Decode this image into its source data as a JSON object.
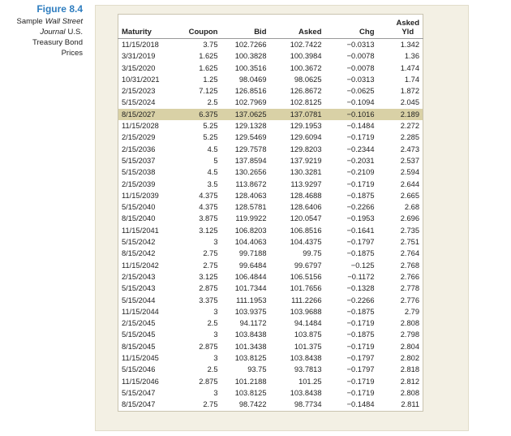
{
  "figure": {
    "label": "Figure 8.4",
    "caption_lines": [
      [
        {
          "text": "Sample"
        },
        {
          "text": "Wall Street",
          "italic": true
        }
      ],
      [
        {
          "text": "Journal",
          "italic": true
        },
        {
          "text": "U.S."
        }
      ],
      [
        {
          "text": "Treasury Bond"
        }
      ],
      [
        {
          "text": "Prices"
        }
      ]
    ]
  },
  "table": {
    "headers": [
      "Maturity",
      "Coupon",
      "Bid",
      "Asked",
      "Chg",
      "Asked Yld"
    ],
    "highlight_row": 6,
    "rows": [
      [
        "11/15/2018",
        "3.75",
        "102.7266",
        "102.7422",
        "−0.0313",
        "1.342"
      ],
      [
        "3/31/2019",
        "1.625",
        "100.3828",
        "100.3984",
        "−0.0078",
        "1.36"
      ],
      [
        "3/15/2020",
        "1.625",
        "100.3516",
        "100.3672",
        "−0.0078",
        "1.474"
      ],
      [
        "10/31/2021",
        "1.25",
        "98.0469",
        "98.0625",
        "−0.0313",
        "1.74"
      ],
      [
        "2/15/2023",
        "7.125",
        "126.8516",
        "126.8672",
        "−0.0625",
        "1.872"
      ],
      [
        "5/15/2024",
        "2.5",
        "102.7969",
        "102.8125",
        "−0.1094",
        "2.045"
      ],
      [
        "8/15/2027",
        "6.375",
        "137.0625",
        "137.0781",
        "−0.1016",
        "2.189"
      ],
      [
        "11/15/2028",
        "5.25",
        "129.1328",
        "129.1953",
        "−0.1484",
        "2.272"
      ],
      [
        "2/15/2029",
        "5.25",
        "129.5469",
        "129.6094",
        "−0.1719",
        "2.285"
      ],
      [
        "2/15/2036",
        "4.5",
        "129.7578",
        "129.8203",
        "−0.2344",
        "2.473"
      ],
      [
        "5/15/2037",
        "5",
        "137.8594",
        "137.9219",
        "−0.2031",
        "2.537"
      ],
      [
        "5/15/2038",
        "4.5",
        "130.2656",
        "130.3281",
        "−0.2109",
        "2.594"
      ],
      [
        "2/15/2039",
        "3.5",
        "113.8672",
        "113.9297",
        "−0.1719",
        "2.644"
      ],
      [
        "11/15/2039",
        "4.375",
        "128.4063",
        "128.4688",
        "−0.1875",
        "2.665"
      ],
      [
        "5/15/2040",
        "4.375",
        "128.5781",
        "128.6406",
        "−0.2266",
        "2.68"
      ],
      [
        "8/15/2040",
        "3.875",
        "119.9922",
        "120.0547",
        "−0.1953",
        "2.696"
      ],
      [
        "11/15/2041",
        "3.125",
        "106.8203",
        "106.8516",
        "−0.1641",
        "2.735"
      ],
      [
        "5/15/2042",
        "3",
        "104.4063",
        "104.4375",
        "−0.1797",
        "2.751"
      ],
      [
        "8/15/2042",
        "2.75",
        "99.7188",
        "99.75",
        "−0.1875",
        "2.764"
      ],
      [
        "11/15/2042",
        "2.75",
        "99.6484",
        "99.6797",
        "−0.125",
        "2.768"
      ],
      [
        "2/15/2043",
        "3.125",
        "106.4844",
        "106.5156",
        "−0.1172",
        "2.766"
      ],
      [
        "5/15/2043",
        "2.875",
        "101.7344",
        "101.7656",
        "−0.1328",
        "2.778"
      ],
      [
        "5/15/2044",
        "3.375",
        "111.1953",
        "111.2266",
        "−0.2266",
        "2.776"
      ],
      [
        "11/15/2044",
        "3",
        "103.9375",
        "103.9688",
        "−0.1875",
        "2.79"
      ],
      [
        "2/15/2045",
        "2.5",
        "94.1172",
        "94.1484",
        "−0.1719",
        "2.808"
      ],
      [
        "5/15/2045",
        "3",
        "103.8438",
        "103.875",
        "−0.1875",
        "2.798"
      ],
      [
        "8/15/2045",
        "2.875",
        "101.3438",
        "101.375",
        "−0.1719",
        "2.804"
      ],
      [
        "11/15/2045",
        "3",
        "103.8125",
        "103.8438",
        "−0.1797",
        "2.802"
      ],
      [
        "5/15/2046",
        "2.5",
        "93.75",
        "93.7813",
        "−0.1797",
        "2.818"
      ],
      [
        "11/15/2046",
        "2.875",
        "101.2188",
        "101.25",
        "−0.1719",
        "2.812"
      ],
      [
        "5/15/2047",
        "3",
        "103.8125",
        "103.8438",
        "−0.1719",
        "2.808"
      ],
      [
        "8/15/2047",
        "2.75",
        "98.7422",
        "98.7734",
        "−0.1484",
        "2.811"
      ]
    ]
  }
}
